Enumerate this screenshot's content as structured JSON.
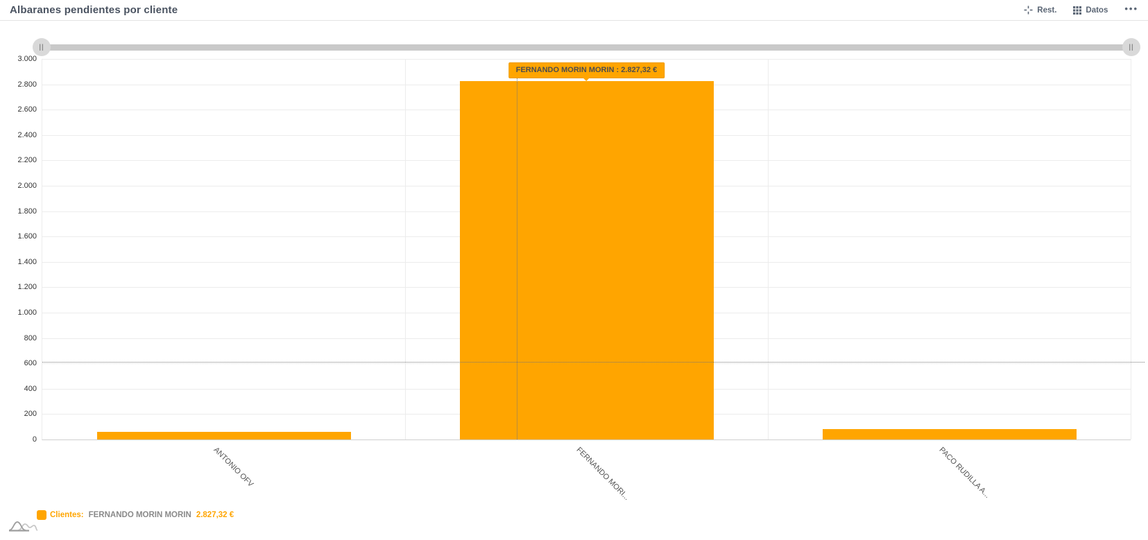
{
  "header": {
    "title": "Albaranes pendientes por cliente",
    "controls": {
      "reset_label": "Rest.",
      "data_label": "Datos",
      "more_label": "•••"
    }
  },
  "icons": {
    "reset": "reset-crosshair-icon",
    "data": "data-grid-icon",
    "more": "ellipsis-icon",
    "legend": "distribution-curves-icon"
  },
  "colors": {
    "accent_orange": "#FFA500",
    "bar": "#FFA500",
    "tooltip_bg": "#FFA500",
    "tooltip_text": "#4d4d4d",
    "title_text": "#4a5361",
    "controls_text": "#5b6675",
    "gridline": "#ececec",
    "axis_line": "#cfcfcf",
    "y_label": "#333333",
    "x_label": "#555555",
    "legend_name": "#8a8a8a"
  },
  "slider": {
    "handle_glyph": "||"
  },
  "tooltip": {
    "text": "FERNANDO MORIN MORIN : 2.827,32 €",
    "target_category_index": 1
  },
  "legend": {
    "series_label": "Clientes",
    "separator": ":",
    "highlight_name": "FERNANDO MORIN MORIN",
    "highlight_value": "2.827,32 €"
  },
  "chart_data": {
    "type": "bar",
    "title": "Albaranes pendientes por cliente",
    "series_name": "Clientes",
    "categories": [
      "ANTONIO OFV",
      "FERNANDO MORI...",
      "PACO RUDILLA A..."
    ],
    "values": [
      60,
      2827.32,
      80
    ],
    "value_labels": [
      "",
      "2.827,32 €",
      ""
    ],
    "xlabel": "",
    "ylabel": "",
    "ylim": [
      0,
      3000
    ],
    "ytick_step": 200,
    "ytick_labels": [
      "0",
      "200",
      "400",
      "600",
      "800",
      "1.000",
      "1.200",
      "1.400",
      "1.600",
      "1.800",
      "2.000",
      "2.200",
      "2.400",
      "2.600",
      "2.800",
      "3.000"
    ],
    "grid": true,
    "legend_position": "bottom-left",
    "crosshair": {
      "x_plot_fraction": 0.436,
      "y_value": 612
    }
  }
}
